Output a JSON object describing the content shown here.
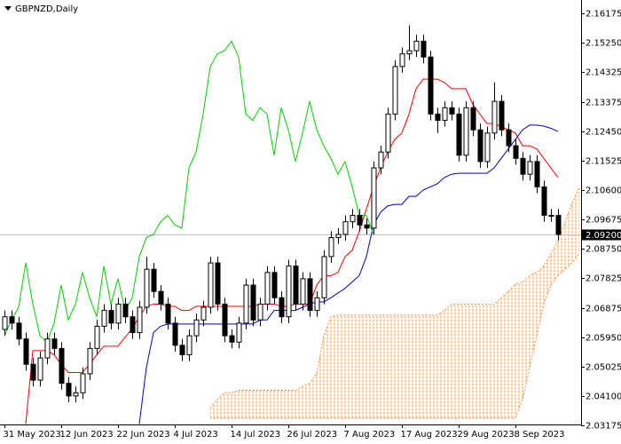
{
  "chart_data": {
    "type": "candlestick",
    "title": "GBPNZD,Daily",
    "ylim": [
      2.032,
      2.166
    ],
    "yticks": [
      2.16175,
      {
        "value": 2.1525,
        "label": "2.15250"
      },
      2.14325,
      2.13375,
      {
        "value": 2.1245,
        "label": "2.12450"
      },
      2.11525,
      {
        "value": 2.106,
        "label": "2.10600"
      },
      2.09675,
      {
        "value": 2.0875,
        "label": "2.08750"
      },
      2.07825,
      2.06875,
      {
        "value": 2.0595,
        "label": "2.05950"
      },
      2.05025,
      {
        "value": 2.041,
        "label": "2.04100"
      },
      2.03175
    ],
    "last_price": {
      "value": 2.092,
      "label": "2.09200"
    },
    "up_color": "#ffffff",
    "down_color": "#000000",
    "categories": [
      "31 May 2023",
      null,
      null,
      null,
      null,
      null,
      null,
      null,
      "12 Jun 2023",
      null,
      null,
      null,
      null,
      null,
      null,
      null,
      "22 Jun 2023",
      null,
      null,
      null,
      null,
      null,
      null,
      null,
      "4 Jul 2023",
      null,
      null,
      null,
      null,
      null,
      null,
      null,
      "14 Jul 2023",
      null,
      null,
      null,
      null,
      null,
      null,
      null,
      "26 Jul 2023",
      null,
      null,
      null,
      null,
      null,
      null,
      null,
      "7 Aug 2023",
      null,
      null,
      null,
      null,
      null,
      null,
      null,
      "17 Aug 2023",
      null,
      null,
      null,
      null,
      null,
      null,
      null,
      "29 Aug 2023",
      null,
      null,
      null,
      null,
      null,
      null,
      null,
      "8 Sep 2023",
      null,
      null,
      null,
      null,
      null,
      null,
      null,
      null,
      null
    ],
    "open": [
      2.062,
      2.066,
      2.064,
      2.059,
      2.051,
      2.046,
      2.053,
      2.059,
      2.056,
      2.045,
      2.041,
      2.042,
      2.048,
      2.056,
      2.063,
      2.068,
      2.064,
      2.07,
      2.066,
      2.061,
      2.069,
      2.081,
      2.074,
      2.07,
      2.064,
      2.057,
      2.054,
      2.06,
      2.065,
      2.069,
      2.083,
      2.07,
      2.06,
      2.058,
      2.064,
      2.076,
      2.065,
      2.07,
      2.08,
      2.072,
      2.066,
      2.082,
      2.07,
      2.078,
      2.068,
      2.072,
      2.085,
      2.091,
      2.092,
      2.096,
      2.098,
      2.095,
      2.094,
      2.113,
      2.118,
      2.13,
      2.145,
      2.149,
      2.15,
      2.153,
      2.148,
      2.13,
      2.128,
      2.132,
      2.13,
      2.117,
      2.132,
      2.125,
      2.115,
      2.124,
      2.134,
      2.125,
      2.12,
      2.116,
      2.111,
      2.115,
      2.107,
      2.098,
      2.098,
      null,
      null,
      null
    ],
    "high": [
      2.068,
      2.068,
      2.066,
      2.061,
      2.053,
      2.055,
      2.061,
      2.061,
      2.058,
      2.047,
      2.044,
      2.05,
      2.058,
      2.065,
      2.07,
      2.07,
      2.072,
      2.072,
      2.068,
      2.071,
      2.085,
      2.083,
      2.076,
      2.072,
      2.066,
      2.059,
      2.062,
      2.067,
      2.071,
      2.085,
      2.085,
      2.072,
      2.062,
      2.066,
      2.078,
      2.078,
      2.072,
      2.082,
      2.082,
      2.074,
      2.084,
      2.084,
      2.08,
      2.08,
      2.074,
      2.087,
      2.093,
      2.094,
      2.098,
      2.1,
      2.1,
      2.097,
      2.115,
      2.12,
      2.132,
      2.147,
      2.151,
      2.158,
      2.155,
      2.155,
      2.15,
      2.132,
      2.134,
      2.134,
      2.132,
      2.134,
      2.134,
      2.127,
      2.126,
      2.14,
      2.136,
      2.127,
      2.122,
      2.118,
      2.117,
      2.117,
      2.109,
      2.1,
      2.1,
      null,
      null,
      null
    ],
    "low": [
      2.06,
      2.062,
      2.057,
      2.049,
      2.044,
      2.044,
      2.051,
      2.054,
      2.043,
      2.039,
      2.039,
      2.04,
      2.046,
      2.054,
      2.061,
      2.062,
      2.062,
      2.064,
      2.059,
      2.059,
      2.067,
      2.072,
      2.068,
      2.062,
      2.055,
      2.052,
      2.052,
      2.058,
      2.063,
      2.067,
      2.068,
      2.058,
      2.056,
      2.056,
      2.062,
      2.063,
      2.063,
      2.068,
      2.07,
      2.064,
      2.064,
      2.068,
      2.068,
      2.066,
      2.066,
      2.07,
      2.083,
      2.089,
      2.09,
      2.094,
      2.093,
      2.092,
      2.092,
      2.111,
      2.116,
      2.128,
      2.143,
      2.147,
      2.148,
      2.146,
      2.128,
      2.124,
      2.126,
      2.128,
      2.115,
      2.115,
      2.123,
      2.113,
      2.113,
      2.122,
      2.123,
      2.118,
      2.114,
      2.109,
      2.109,
      2.105,
      2.096,
      2.096,
      2.09,
      null,
      null,
      null
    ],
    "close": [
      2.066,
      2.064,
      2.059,
      2.051,
      2.046,
      2.053,
      2.059,
      2.056,
      2.045,
      2.041,
      2.042,
      2.048,
      2.056,
      2.063,
      2.068,
      2.064,
      2.07,
      2.066,
      2.061,
      2.069,
      2.081,
      2.074,
      2.07,
      2.064,
      2.057,
      2.054,
      2.06,
      2.065,
      2.069,
      2.083,
      2.07,
      2.06,
      2.058,
      2.064,
      2.076,
      2.065,
      2.07,
      2.08,
      2.072,
      2.066,
      2.082,
      2.07,
      2.078,
      2.068,
      2.072,
      2.085,
      2.091,
      2.092,
      2.096,
      2.098,
      2.095,
      2.094,
      2.113,
      2.118,
      2.13,
      2.145,
      2.149,
      2.15,
      2.153,
      2.148,
      2.13,
      2.128,
      2.132,
      2.13,
      2.117,
      2.132,
      2.125,
      2.115,
      2.124,
      2.134,
      2.125,
      2.12,
      2.116,
      2.111,
      2.115,
      2.107,
      2.098,
      2.098,
      2.092,
      null,
      null,
      null
    ],
    "lines": [
      {
        "color": "#ff0000",
        "values": [
          null,
          null,
          null,
          2.0321,
          2.0553,
          2.0553,
          2.0553,
          2.054,
          2.051,
          2.0484,
          2.0484,
          2.0484,
          2.051,
          2.054,
          2.0567,
          2.0567,
          2.0567,
          2.0595,
          2.0623,
          2.066,
          2.0693,
          2.07,
          2.07,
          2.0693,
          2.0693,
          2.068,
          2.068,
          2.0693,
          2.0693,
          2.0693,
          2.0693,
          2.0693,
          2.0693,
          2.0693,
          2.0693,
          2.0693,
          2.07,
          2.07,
          2.07,
          2.0693,
          2.0693,
          2.07,
          2.07,
          2.07,
          2.076,
          2.079,
          2.079,
          2.08,
          2.085,
          2.087,
          2.093,
          2.1,
          2.107,
          2.113,
          2.118,
          2.122,
          2.124,
          2.13,
          2.138,
          2.141,
          2.141,
          2.141,
          2.14,
          2.138,
          2.138,
          2.138,
          2.133,
          2.13,
          2.127,
          2.127,
          2.126,
          2.125,
          2.124,
          2.12,
          2.12,
          2.119,
          2.116,
          2.113,
          2.11,
          null,
          null,
          null
        ]
      },
      {
        "color": "#0000cd",
        "values": [
          null,
          null,
          null,
          null,
          null,
          null,
          null,
          null,
          null,
          null,
          null,
          null,
          null,
          null,
          null,
          null,
          null,
          null,
          null,
          2.0321,
          2.05,
          2.061,
          2.063,
          2.0637,
          2.0637,
          2.0637,
          2.0637,
          2.0637,
          2.0637,
          2.0637,
          2.0637,
          2.0637,
          2.0637,
          2.0637,
          2.0637,
          2.0637,
          2.065,
          2.065,
          2.068,
          2.068,
          2.068,
          2.068,
          2.069,
          2.07,
          2.0707,
          2.0707,
          2.072,
          2.0735,
          2.075,
          2.077,
          2.079,
          2.085,
          2.095,
          2.099,
          2.101,
          2.1015,
          2.1015,
          2.104,
          2.104,
          2.106,
          2.107,
          2.108,
          2.11,
          2.111,
          2.1113,
          2.1113,
          2.1113,
          2.1113,
          2.1113,
          2.113,
          2.116,
          2.119,
          2.122,
          2.125,
          2.1265,
          2.1265,
          2.1262,
          2.1255,
          2.1245,
          null,
          null,
          null
        ]
      },
      {
        "color": "#00d000",
        "values": [
          2.06,
          2.065,
          2.069,
          2.083,
          2.07,
          2.06,
          2.058,
          2.064,
          2.076,
          2.065,
          2.07,
          2.08,
          2.072,
          2.066,
          2.082,
          2.07,
          2.078,
          2.068,
          2.072,
          2.085,
          2.091,
          2.092,
          2.096,
          2.098,
          2.095,
          2.094,
          2.113,
          2.118,
          2.13,
          2.145,
          2.149,
          2.15,
          2.153,
          2.148,
          2.13,
          2.128,
          2.132,
          2.13,
          2.117,
          2.132,
          2.125,
          2.115,
          2.124,
          2.134,
          2.125,
          2.12,
          2.116,
          2.111,
          2.115,
          2.107,
          2.098,
          2.098,
          2.092,
          null,
          null,
          null,
          null,
          null,
          null,
          null,
          null,
          null,
          null,
          null,
          null,
          null,
          null,
          null,
          null,
          null,
          null,
          null,
          null,
          null,
          null,
          null,
          null,
          null,
          null,
          null,
          null,
          null
        ]
      }
    ],
    "cloud": {
      "color": "#ff8c3a",
      "upper": [
        null,
        null,
        null,
        null,
        null,
        null,
        null,
        null,
        null,
        null,
        null,
        null,
        null,
        null,
        null,
        null,
        null,
        null,
        null,
        null,
        null,
        null,
        null,
        null,
        null,
        null,
        null,
        null,
        null,
        2.0372,
        2.04,
        2.042,
        2.042,
        2.0428,
        2.0428,
        2.0428,
        2.0428,
        2.0428,
        2.0428,
        2.0428,
        2.0428,
        2.0428,
        2.044,
        2.045,
        2.048,
        2.06,
        2.066,
        2.0665,
        2.0665,
        2.0665,
        2.0665,
        2.0665,
        2.0665,
        2.0665,
        2.0665,
        2.0665,
        2.0665,
        2.0665,
        2.0665,
        2.0665,
        2.0665,
        2.0665,
        2.068,
        2.07,
        2.07,
        2.07,
        2.07,
        2.07,
        2.07,
        2.07,
        2.072,
        2.074,
        2.0763,
        2.077,
        2.079,
        2.08,
        2.082,
        2.086,
        2.09,
        2.096,
        2.102,
        2.107
      ],
      "lower": [
        null,
        null,
        null,
        null,
        null,
        null,
        null,
        null,
        null,
        null,
        null,
        null,
        null,
        null,
        null,
        null,
        null,
        null,
        null,
        null,
        null,
        null,
        null,
        null,
        null,
        null,
        null,
        null,
        null,
        2.034,
        2.034,
        2.034,
        2.034,
        2.034,
        2.034,
        2.034,
        2.034,
        2.034,
        2.034,
        2.034,
        2.034,
        2.034,
        2.034,
        2.034,
        2.034,
        2.034,
        2.034,
        2.034,
        2.034,
        2.034,
        2.034,
        2.034,
        2.034,
        2.034,
        2.034,
        2.034,
        2.034,
        2.034,
        2.034,
        2.034,
        2.034,
        2.034,
        2.034,
        2.034,
        2.034,
        2.034,
        2.034,
        2.034,
        2.034,
        2.034,
        2.034,
        2.034,
        2.034,
        2.04,
        2.05,
        2.06,
        2.07,
        2.076,
        2.079,
        2.081,
        2.083,
        2.086
      ]
    }
  }
}
